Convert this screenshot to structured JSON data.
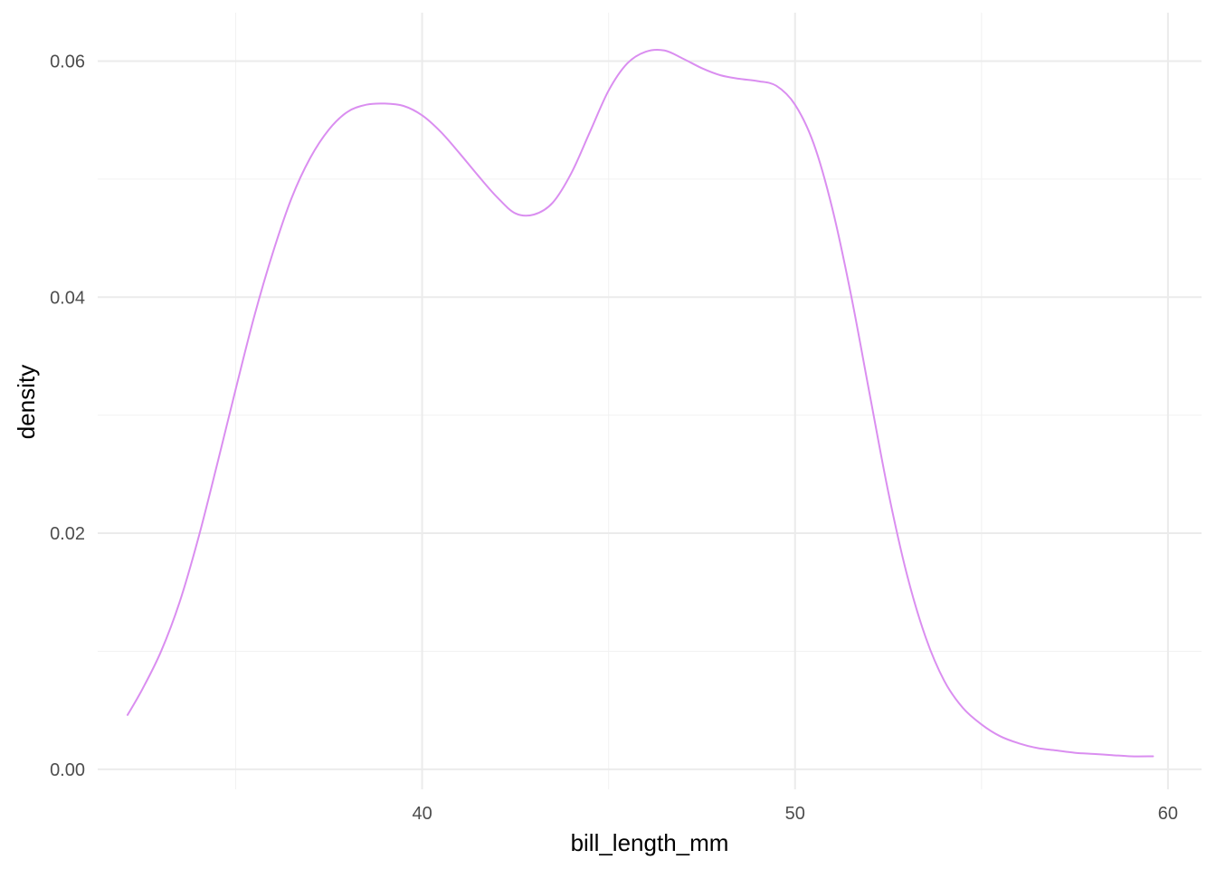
{
  "chart_data": {
    "type": "line",
    "title": "",
    "xlabel": "bill_length_mm",
    "ylabel": "density",
    "xlim": [
      31.3,
      60.9
    ],
    "ylim": [
      -0.0017,
      0.0641
    ],
    "x_ticks": [
      40,
      50,
      60
    ],
    "x_tick_labels": [
      "40",
      "50",
      "60"
    ],
    "x_minor_ticks": [
      35,
      45,
      55
    ],
    "y_ticks": [
      0.0,
      0.02,
      0.04,
      0.06
    ],
    "y_tick_labels": [
      "0.00",
      "0.02",
      "0.04",
      "0.06"
    ],
    "y_minor_ticks": [
      0.01,
      0.03,
      0.05
    ],
    "grid": true,
    "legend": "none",
    "line_color": "#da8ef0",
    "series": [
      {
        "x": [
          32.1,
          32.5,
          33.0,
          33.5,
          34.0,
          34.5,
          35.0,
          35.5,
          36.0,
          36.5,
          37.0,
          37.5,
          38.0,
          38.5,
          39.0,
          39.5,
          40.0,
          40.5,
          41.0,
          41.5,
          42.0,
          42.5,
          43.0,
          43.5,
          44.0,
          44.5,
          45.0,
          45.5,
          46.0,
          46.5,
          47.0,
          47.5,
          48.0,
          48.5,
          49.0,
          49.5,
          50.0,
          50.5,
          51.0,
          51.5,
          52.0,
          52.5,
          53.0,
          53.5,
          54.0,
          54.5,
          55.0,
          55.5,
          56.0,
          56.5,
          57.0,
          57.5,
          58.0,
          58.5,
          59.0,
          59.6
        ],
        "y": [
          0.0046,
          0.0068,
          0.01,
          0.0142,
          0.0196,
          0.0258,
          0.0322,
          0.0384,
          0.0438,
          0.0484,
          0.0518,
          0.0542,
          0.0557,
          0.0563,
          0.0564,
          0.0562,
          0.0554,
          0.054,
          0.0522,
          0.0503,
          0.0485,
          0.0471,
          0.047,
          0.048,
          0.0505,
          0.054,
          0.0575,
          0.0598,
          0.0608,
          0.0609,
          0.0602,
          0.0594,
          0.0588,
          0.0585,
          0.0583,
          0.0579,
          0.0563,
          0.053,
          0.0475,
          0.0402,
          0.0318,
          0.0235,
          0.0165,
          0.0112,
          0.0075,
          0.0052,
          0.0038,
          0.0028,
          0.0022,
          0.0018,
          0.0016,
          0.0014,
          0.0013,
          0.0012,
          0.0011,
          0.0011
        ]
      }
    ]
  }
}
